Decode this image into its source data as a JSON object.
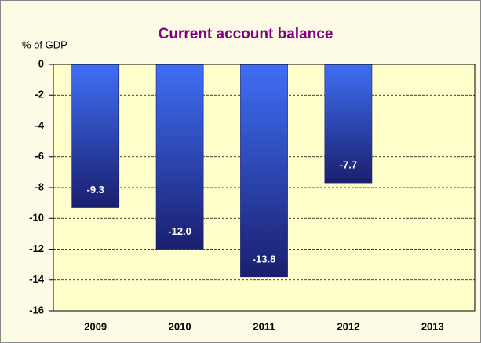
{
  "chart_data": {
    "type": "bar",
    "title": "Current account balance",
    "y_label": "% of GDP",
    "categories": [
      "2009",
      "2010",
      "2011",
      "2012",
      "2013"
    ],
    "values": [
      -9.3,
      -12.0,
      -13.8,
      -7.7,
      null
    ],
    "value_labels": [
      "-9.3",
      "-12.0",
      "-13.8",
      "-7.7",
      null
    ],
    "color": "#3f6ff5",
    "ylim": [
      0,
      -16
    ],
    "yticks": [
      0,
      -2,
      -4,
      -6,
      -8,
      -10,
      -12,
      -14,
      -16
    ],
    "grid": true
  }
}
